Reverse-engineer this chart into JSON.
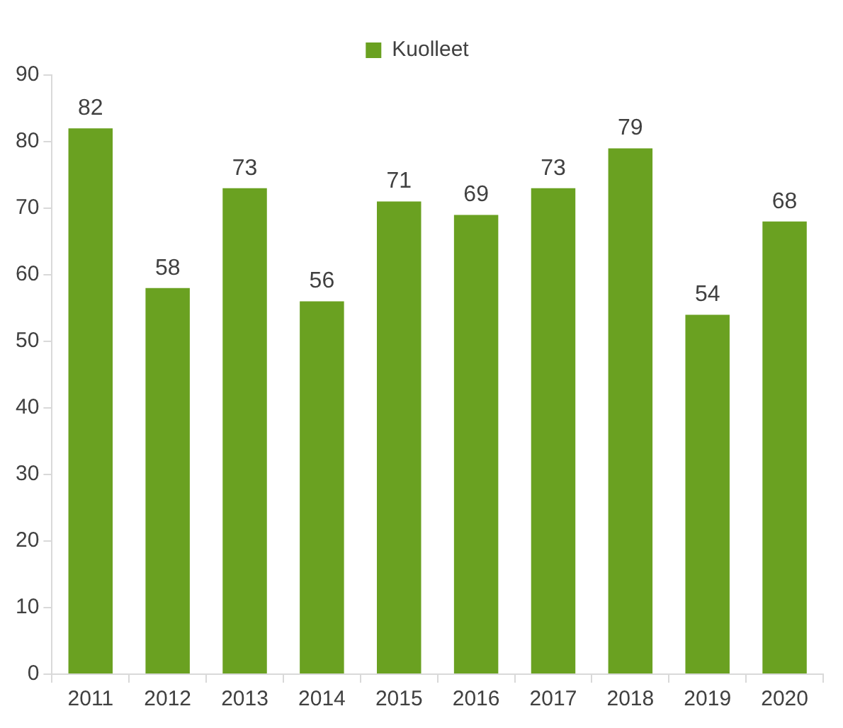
{
  "chart_data": {
    "type": "bar",
    "categories": [
      "2011",
      "2012",
      "2013",
      "2014",
      "2015",
      "2016",
      "2017",
      "2018",
      "2019",
      "2020"
    ],
    "series": [
      {
        "name": "Kuolleet",
        "color": "#6aa121",
        "values": [
          82,
          58,
          73,
          56,
          71,
          69,
          73,
          79,
          54,
          68
        ]
      }
    ],
    "ylim": [
      0,
      90
    ],
    "yticks": [
      0,
      10,
      20,
      30,
      40,
      50,
      60,
      70,
      80,
      90
    ],
    "grid": false,
    "legend": "top",
    "data_labels": true
  }
}
